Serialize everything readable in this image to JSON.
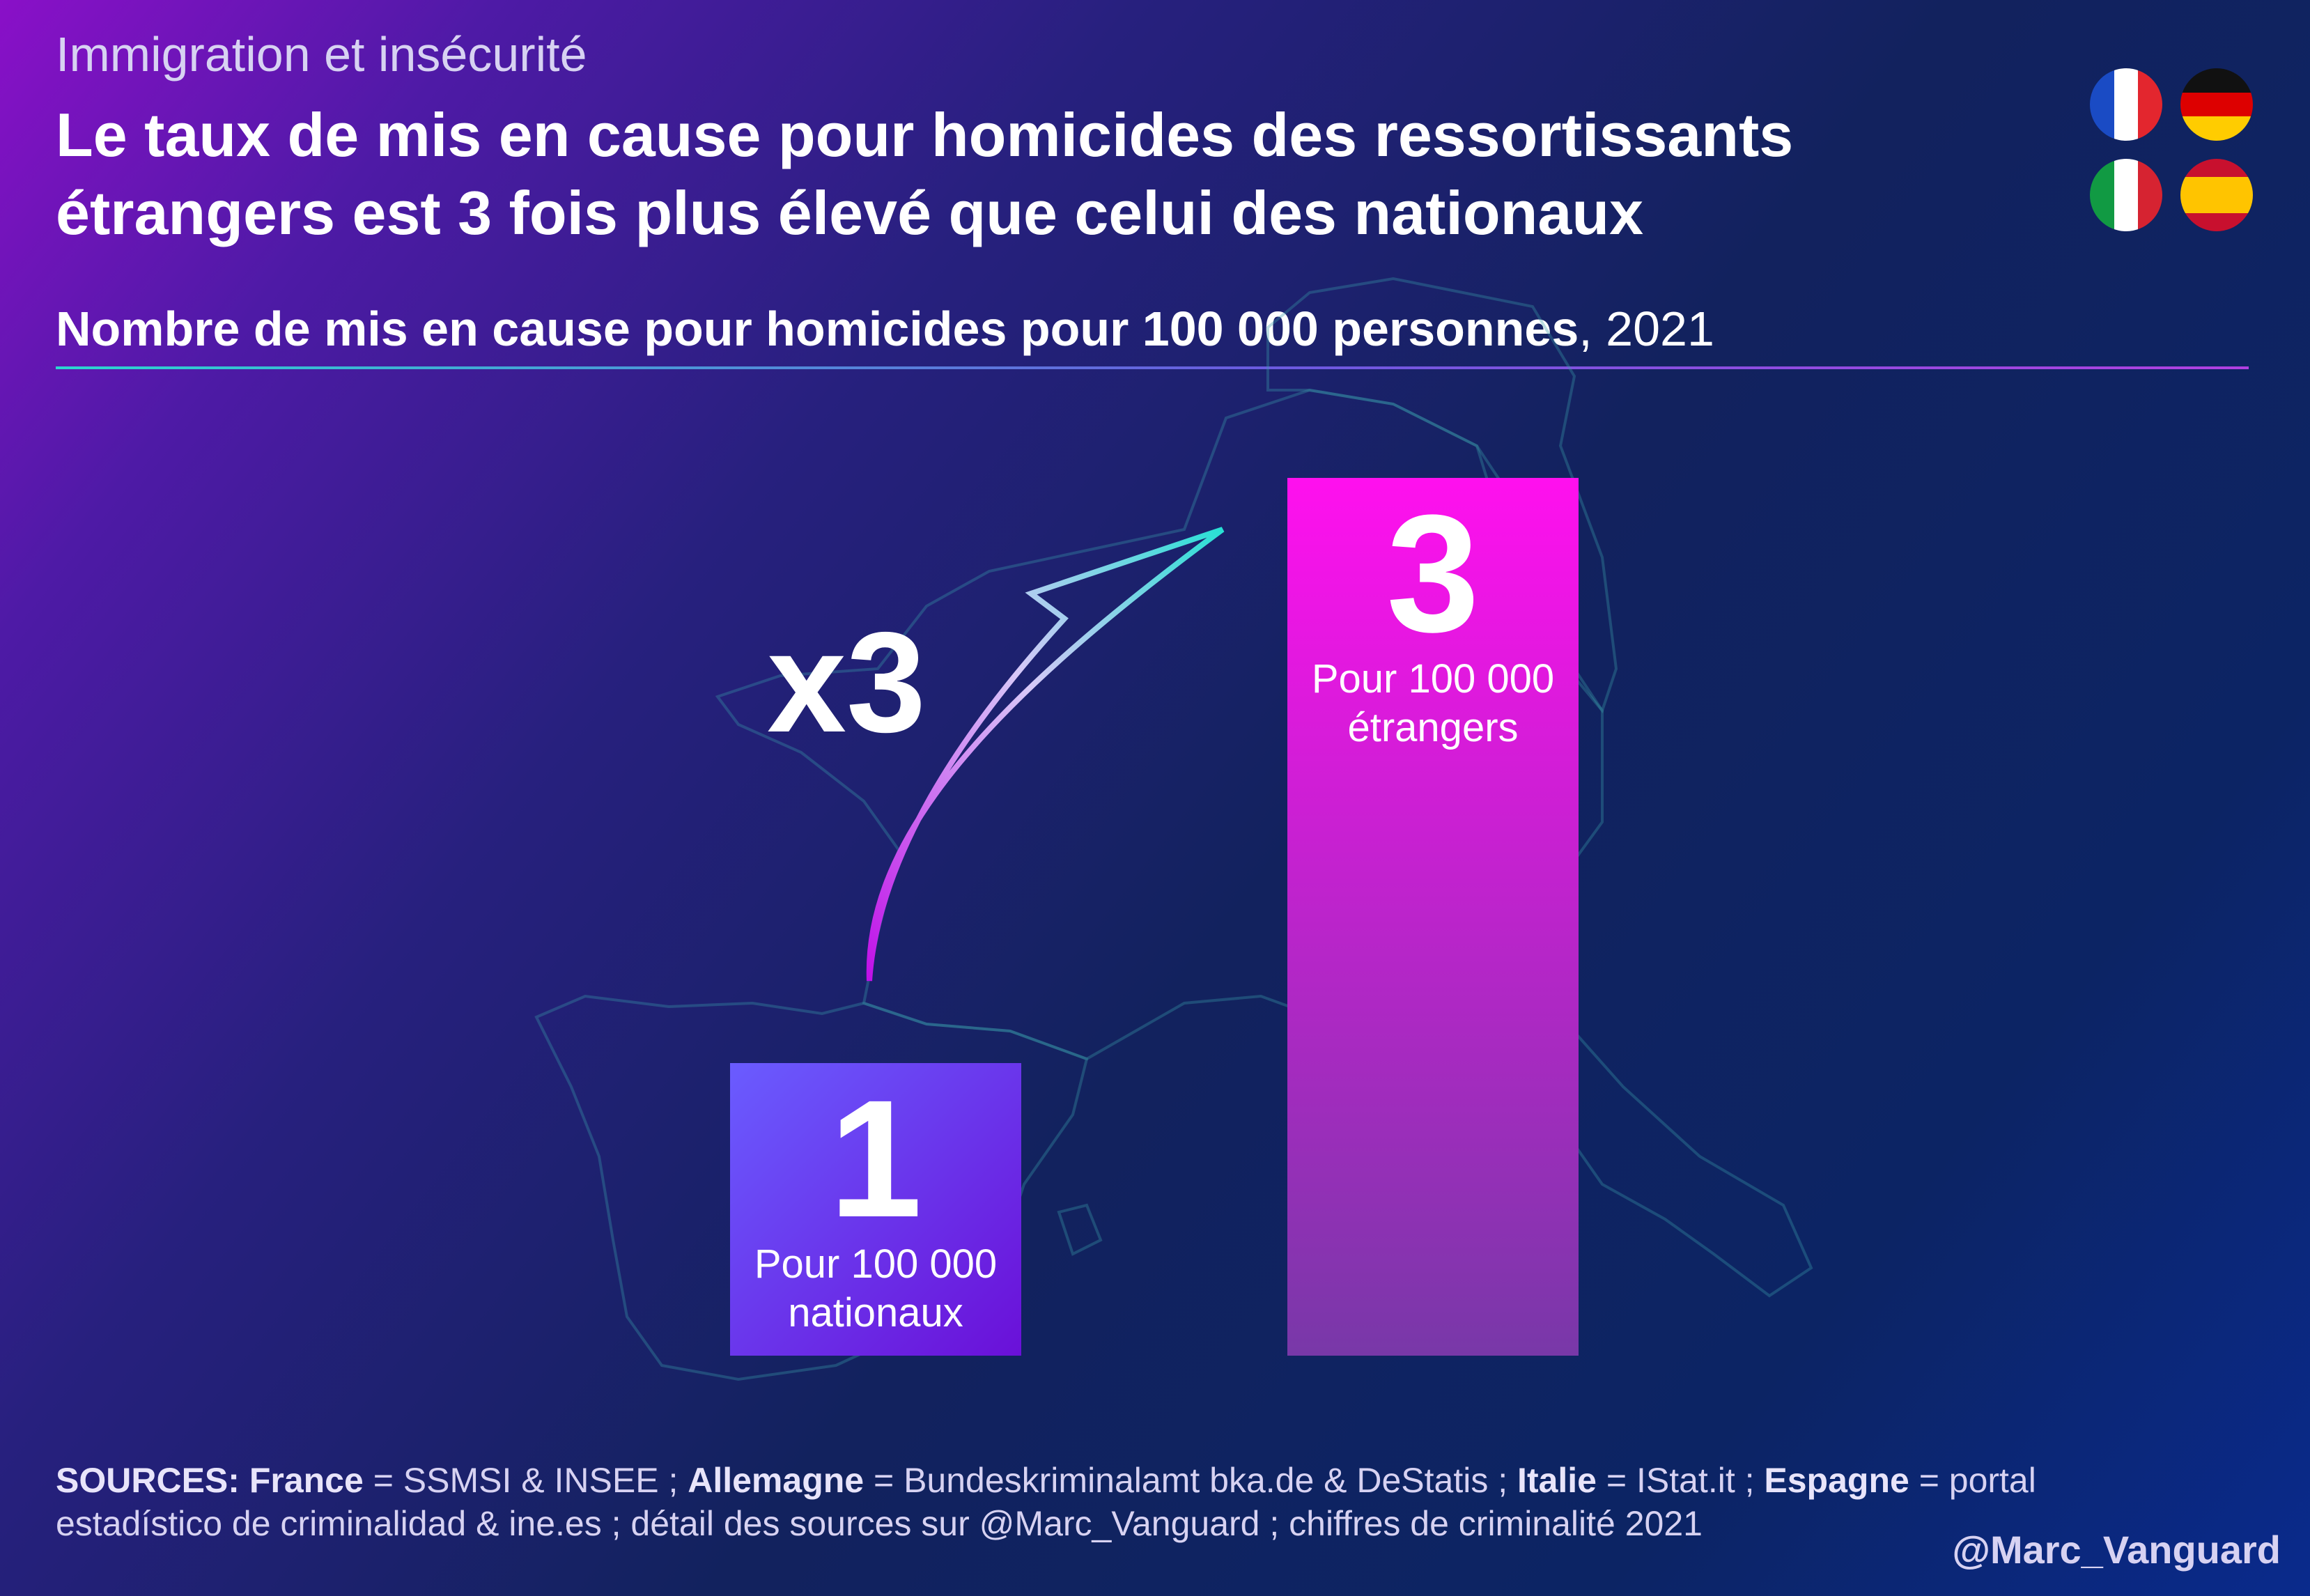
{
  "header": {
    "kicker": "Immigration et insécurité",
    "title_line1": "Le taux de mis en cause pour homicides des ressortissants",
    "title_line2": "étrangers est 3 fois plus élevé que celui des nationaux"
  },
  "subtitle": {
    "bold": "Nombre de mis en cause pour homicides pour 100 000 personnes",
    "year": ", 2021"
  },
  "flags": [
    {
      "name": "france-flag-icon",
      "colors": [
        "#1a4bc4",
        "#ffffff",
        "#e3262e"
      ]
    },
    {
      "name": "germany-flag-icon",
      "colors": [
        "#111111",
        "#dd0000",
        "#ffcc00"
      ]
    },
    {
      "name": "italy-flag-icon",
      "colors": [
        "#119a43",
        "#ffffff",
        "#d62331"
      ]
    },
    {
      "name": "spain-flag-icon",
      "colors": [
        "#c8102e",
        "#ffc400",
        "#c8102e"
      ]
    }
  ],
  "chart_data": {
    "type": "bar",
    "categories": [
      "nationaux",
      "étrangers"
    ],
    "values": [
      1,
      3
    ],
    "value_labels": [
      "1",
      "3"
    ],
    "sub_labels": [
      [
        "Pour 100 000",
        "nationaux"
      ],
      [
        "Pour 100 000",
        "étrangers"
      ]
    ],
    "annotation": "x3",
    "ylim": [
      0,
      3
    ],
    "grid": false,
    "colors": {
      "nationaux": [
        "#6a5cff",
        "#6a10d8"
      ],
      "etrangers": [
        "#ff10ee",
        "#7838a8"
      ],
      "arrow": [
        "#c010e8",
        "#28e0d4"
      ],
      "baseline": [
        "#2bd6d0",
        "#a040e0"
      ]
    }
  },
  "footer": {
    "sources_label": "SOURCES:",
    "fr_label": "France",
    "fr_text": " = SSMSI & INSEE ; ",
    "de_label": "Allemagne",
    "de_text": " = Bundeskriminalamt bka.de & DeStatis ; ",
    "it_label": "Italie",
    "it_text": " = IStat.it ; ",
    "es_label": "Espagne",
    "es_text": " = portal estadístico de criminalidad & ine.es ; détail des sources sur @Marc_Vanguard ; chiffres de criminalité 2021",
    "handle": "@Marc_Vanguard"
  }
}
